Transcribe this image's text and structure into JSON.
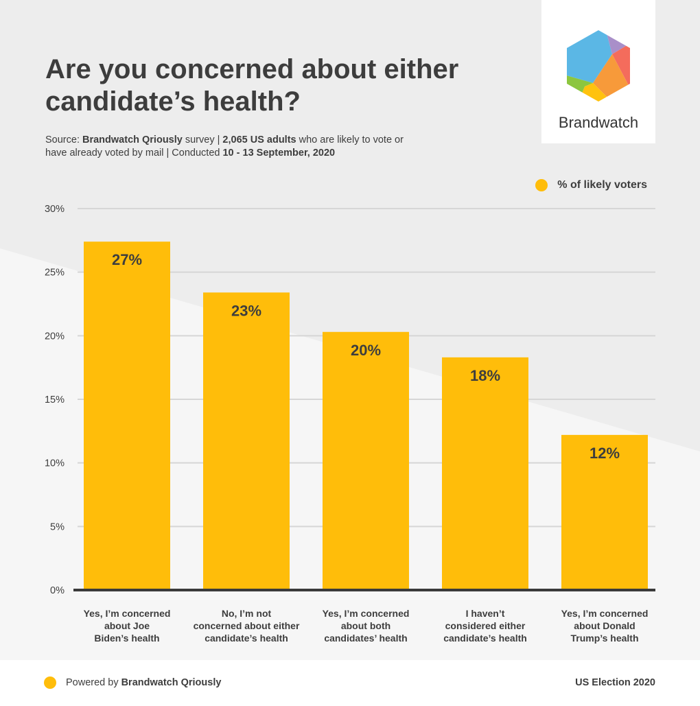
{
  "header": {
    "title": "Are you concerned about either candidate’s health?",
    "source": {
      "prefix": "Source: ",
      "brand": "Brandwatch Qriously",
      "middle": " survey | ",
      "sample": "2,065 US adults",
      "desc": " who are likely to vote or have already voted by mail | Conducted ",
      "dates": "10 - 13 September, 2020"
    }
  },
  "logo": {
    "text": "Brandwatch"
  },
  "legend": {
    "label": "% of likely voters"
  },
  "chart_data": {
    "type": "bar",
    "categories": [
      "Yes, I’m concerned about Joe Biden’s health",
      "No, I’m not concerned about either candidate’s health",
      "Yes, I’m concerned about both candidates’ health",
      "I haven’t considered either candidate’s health",
      "Yes, I’m concerned about Donald Trump’s health"
    ],
    "category_lines": [
      [
        "Yes, I’m concerned",
        "about Joe",
        "Biden’s health"
      ],
      [
        "No, I’m not",
        "concerned about either",
        "candidate’s health"
      ],
      [
        "Yes, I’m concerned",
        "about both",
        "candidates’ health"
      ],
      [
        "I haven’t",
        "considered either",
        "candidate’s health"
      ],
      [
        "Yes, I’m concerned",
        "about Donald",
        "Trump’s health"
      ]
    ],
    "series": [
      {
        "name": "% of likely voters",
        "values": [
          27.4,
          23.4,
          20.3,
          18.3,
          12.2
        ]
      }
    ],
    "data_labels": [
      "27%",
      "23%",
      "20%",
      "18%",
      "12%"
    ],
    "y_ticks": [
      0,
      5,
      10,
      15,
      20,
      25,
      30
    ],
    "y_tick_labels": [
      "0%",
      "5%",
      "10%",
      "15%",
      "20%",
      "25%",
      "30%"
    ],
    "ylim": [
      0,
      30
    ],
    "grid": true,
    "legend_position": "top-right",
    "bar_color": "#ffbd0a"
  },
  "footer": {
    "powered_prefix": "Powered by",
    "powered_brand": "Brandwatch Qriously",
    "right": "US Election 2020"
  }
}
